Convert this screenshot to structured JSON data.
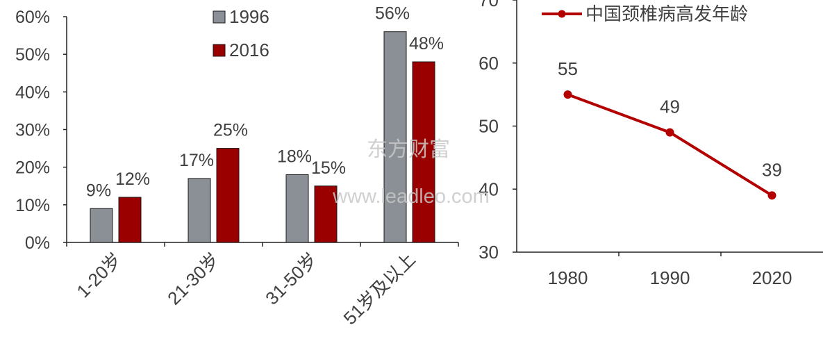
{
  "watermark": {
    "line1": "东方财富",
    "line2": "www.leadleo.com"
  },
  "colors": {
    "series_1996": "#8a9096",
    "series_2016": "#9b0000",
    "line": "#b30000",
    "axis": "#222222",
    "text": "#404040"
  },
  "chart_data": [
    {
      "type": "bar",
      "categories": [
        "1-20岁",
        "21-30岁",
        "31-50岁",
        "51岁及以上"
      ],
      "series": [
        {
          "name": "1996",
          "values": [
            9,
            17,
            18,
            56
          ],
          "labels": [
            "9%",
            "17%",
            "18%",
            "56%"
          ]
        },
        {
          "name": "2016",
          "values": [
            12,
            25,
            15,
            48
          ],
          "labels": [
            "12%",
            "25%",
            "15%",
            "48%"
          ]
        }
      ],
      "ylim": [
        0,
        60
      ],
      "yticks": [
        "0%",
        "10%",
        "20%",
        "30%",
        "40%",
        "50%",
        "60%"
      ],
      "grid": false,
      "legend": "top-right"
    },
    {
      "type": "line",
      "x": [
        "1980",
        "1990",
        "2020"
      ],
      "series": [
        {
          "name": "中国颈椎病高发年龄",
          "values": [
            55,
            49,
            39
          ],
          "labels": [
            "55",
            "49",
            "39"
          ]
        }
      ],
      "ylim": [
        30,
        70
      ],
      "yticks": [
        "30",
        "40",
        "50",
        "60",
        "70"
      ],
      "grid": false,
      "legend": "top"
    }
  ]
}
